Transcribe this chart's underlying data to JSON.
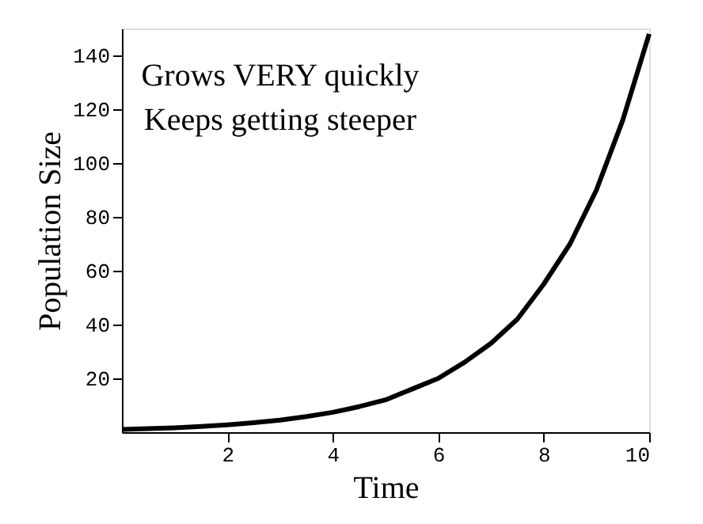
{
  "chart_data": {
    "type": "line",
    "xlabel": "Time",
    "ylabel": "Population Size",
    "annotations": [
      "Grows VERY quickly",
      "Keeps getting steeper"
    ],
    "x": [
      0,
      0.5,
      1,
      1.5,
      2,
      2.5,
      3,
      3.5,
      4,
      4.5,
      5,
      5.5,
      6,
      6.5,
      7,
      7.5,
      8,
      8.5,
      9,
      9.5,
      10
    ],
    "series": [
      {
        "color": "#000000",
        "values": [
          1,
          1.3,
          1.6,
          2.1,
          2.7,
          3.5,
          4.5,
          5.8,
          7.4,
          9.5,
          12,
          16,
          20,
          26,
          33,
          42,
          55,
          70,
          90,
          116,
          148
        ]
      }
    ],
    "xlim": [
      0,
      10
    ],
    "ylim": [
      0,
      150
    ],
    "xticks": [
      2,
      4,
      6,
      8,
      10
    ],
    "yticks": [
      20,
      40,
      60,
      80,
      100,
      120,
      140
    ],
    "grid": false,
    "marker": "none",
    "line_style": "solid"
  }
}
